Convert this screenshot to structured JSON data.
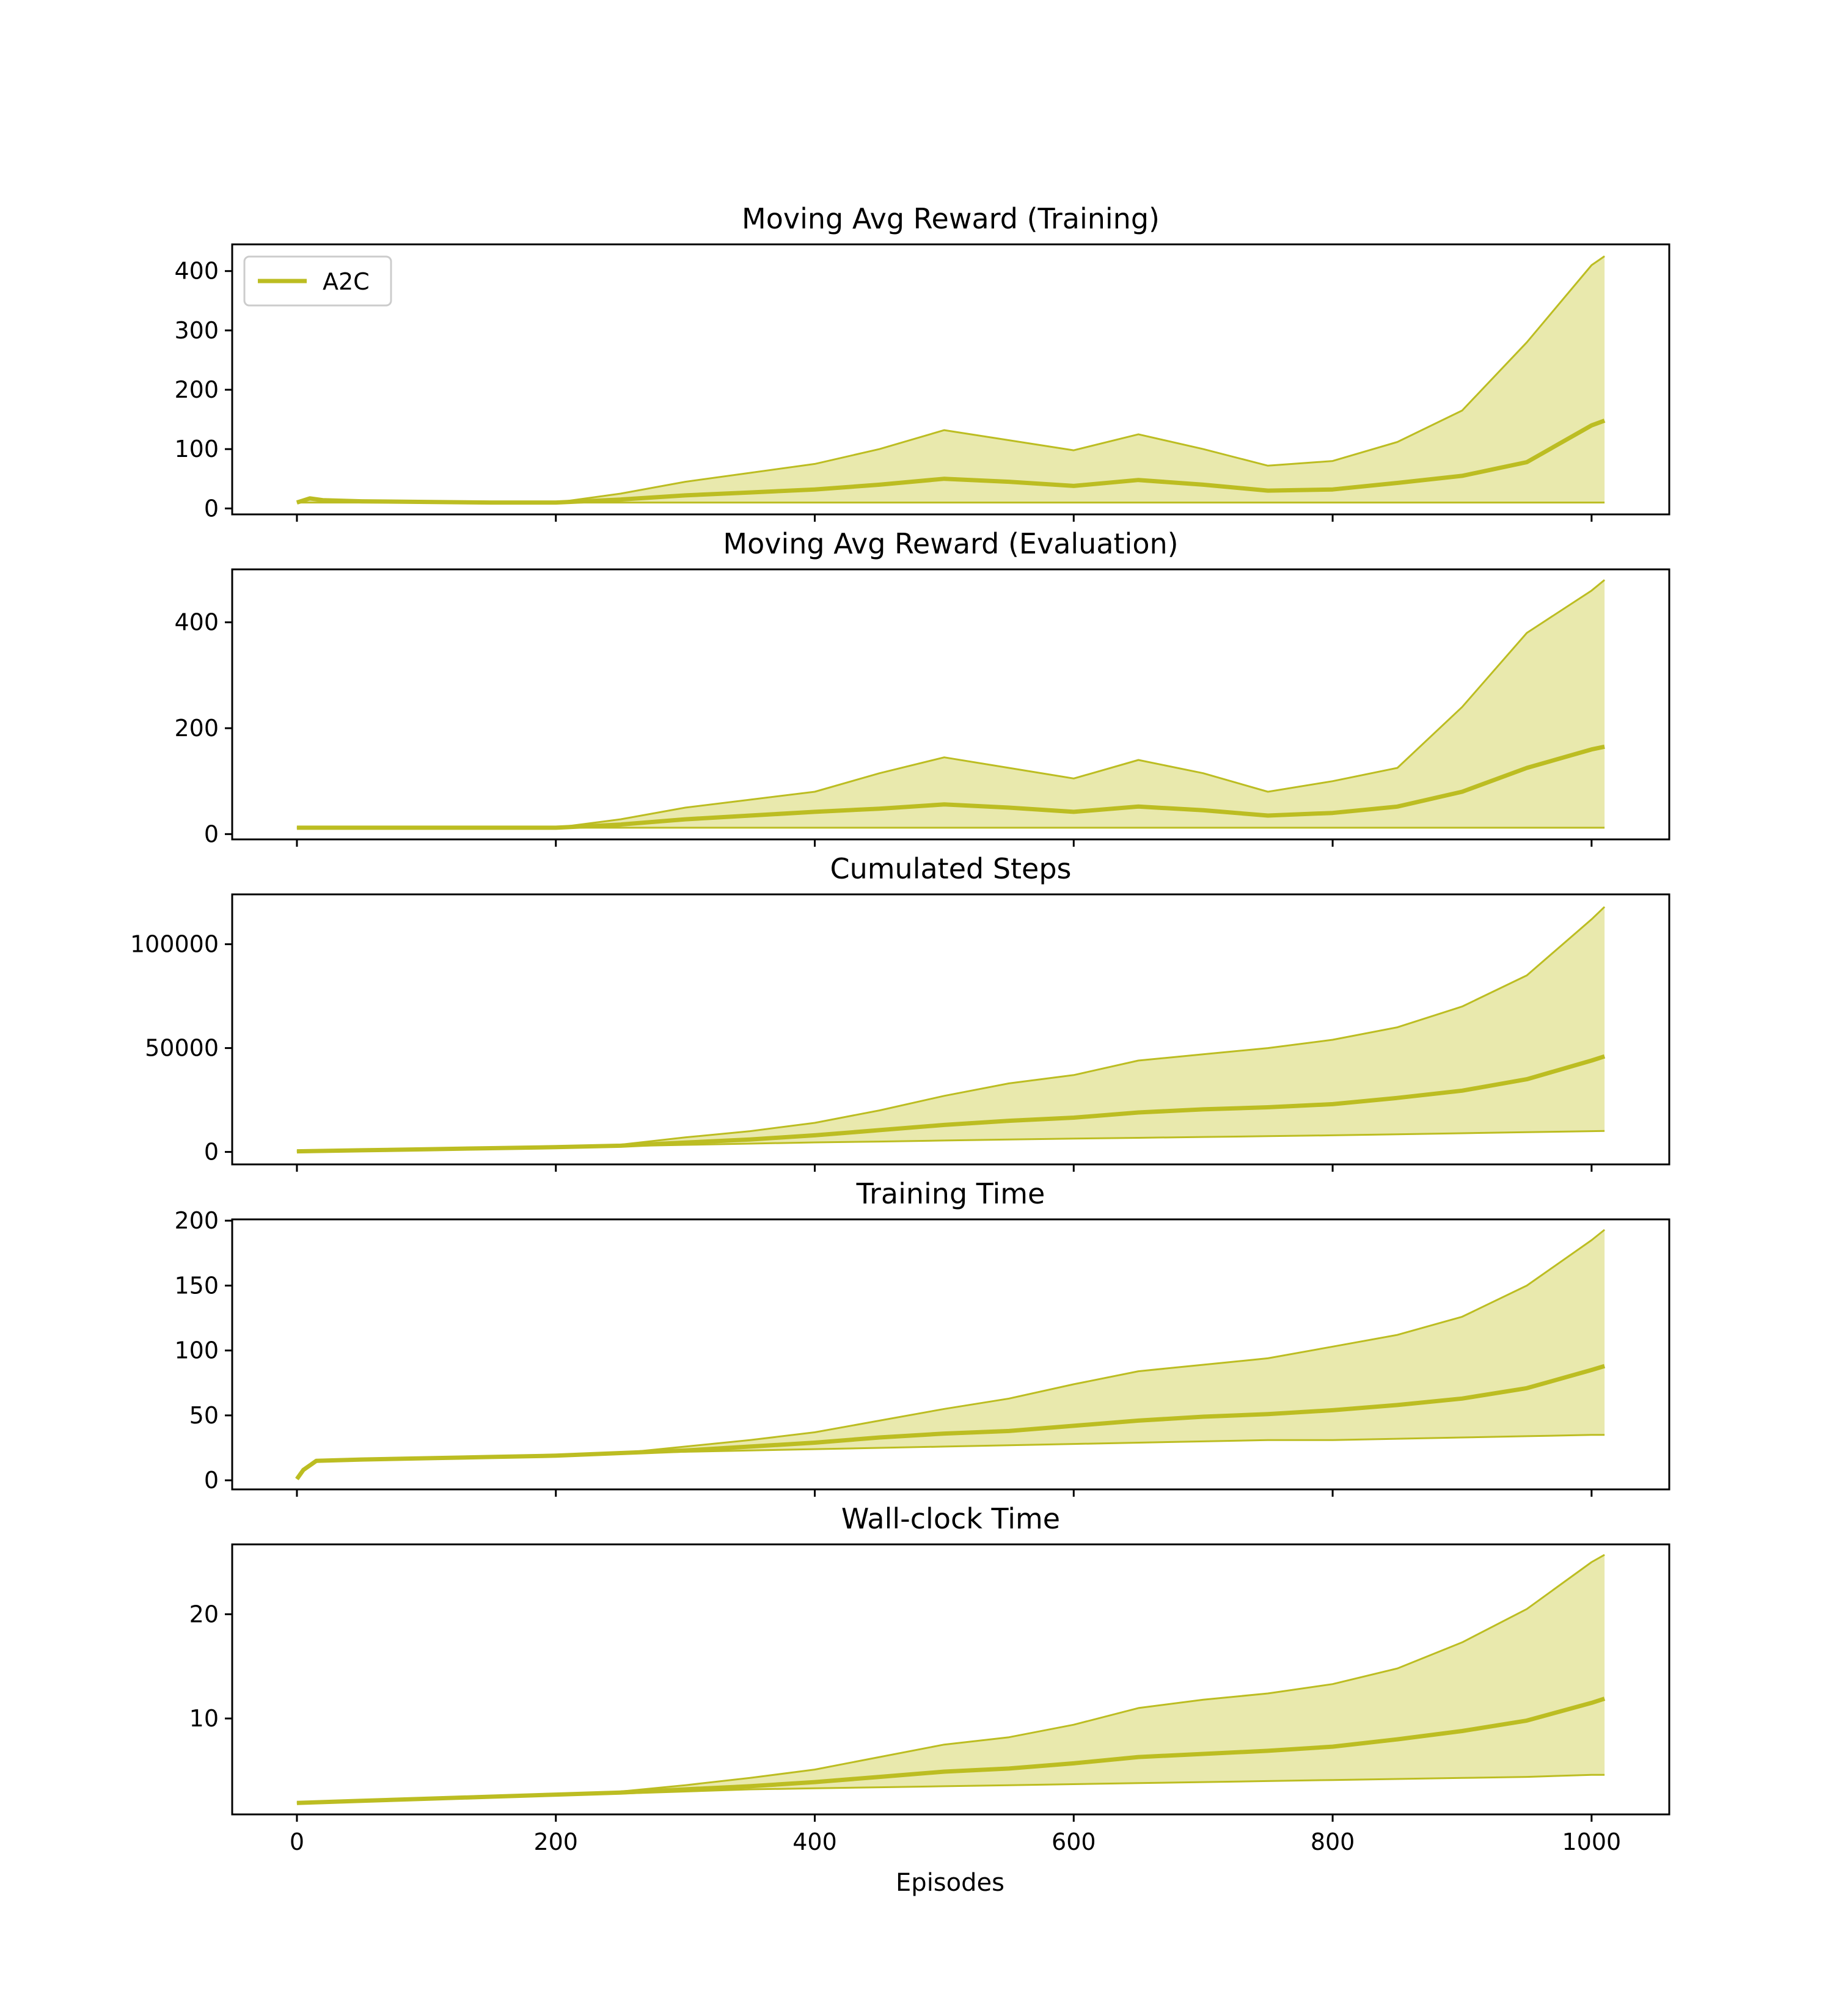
{
  "figure": {
    "xlabel": "Episodes"
  },
  "colors": {
    "series": "#bcbd22",
    "band_fill": "#e9e9ad"
  },
  "legend": {
    "label": "A2C",
    "placement": "upper-left"
  },
  "chart_data": [
    {
      "type": "line",
      "title": "Moving Avg Reward (Training)",
      "xlabel": "",
      "ylabel": "",
      "xlim": [
        -50,
        1060
      ],
      "ylim": [
        -10,
        445
      ],
      "xticks": [
        0,
        200,
        400,
        600,
        800,
        1000
      ],
      "yticks": [
        0,
        100,
        200,
        300,
        400
      ],
      "series": [
        {
          "name": "A2C",
          "x": [
            0,
            10,
            20,
            50,
            100,
            150,
            200,
            250,
            300,
            350,
            400,
            450,
            500,
            550,
            600,
            650,
            700,
            750,
            800,
            850,
            900,
            950,
            1000,
            1010
          ],
          "mean": [
            10,
            17,
            14,
            12,
            11,
            10,
            10,
            15,
            22,
            27,
            32,
            40,
            50,
            45,
            38,
            48,
            40,
            30,
            32,
            43,
            55,
            78,
            140,
            148
          ],
          "upper": [
            10,
            17,
            14,
            12,
            11,
            10,
            10,
            25,
            45,
            60,
            75,
            100,
            132,
            115,
            98,
            125,
            100,
            72,
            80,
            112,
            165,
            280,
            410,
            425
          ],
          "lower": [
            10,
            10,
            10,
            10,
            10,
            10,
            10,
            10,
            10,
            10,
            10,
            10,
            10,
            10,
            10,
            10,
            10,
            10,
            10,
            10,
            10,
            10,
            10,
            10
          ]
        }
      ]
    },
    {
      "type": "line",
      "title": "Moving Avg Reward (Evaluation)",
      "xlabel": "",
      "ylabel": "",
      "xlim": [
        -50,
        1060
      ],
      "ylim": [
        -10,
        500
      ],
      "xticks": [
        0,
        200,
        400,
        600,
        800,
        1000
      ],
      "yticks": [
        0,
        200,
        400
      ],
      "series": [
        {
          "name": "A2C",
          "x": [
            0,
            50,
            100,
            150,
            200,
            250,
            300,
            350,
            400,
            450,
            500,
            550,
            600,
            650,
            700,
            750,
            800,
            850,
            900,
            950,
            1000,
            1010
          ],
          "mean": [
            12,
            12,
            12,
            12,
            12,
            18,
            28,
            35,
            42,
            48,
            56,
            50,
            42,
            52,
            45,
            35,
            40,
            52,
            80,
            125,
            160,
            165
          ],
          "upper": [
            12,
            12,
            12,
            12,
            12,
            28,
            50,
            65,
            80,
            115,
            145,
            125,
            105,
            140,
            115,
            80,
            100,
            125,
            240,
            380,
            460,
            480
          ],
          "lower": [
            12,
            12,
            12,
            12,
            12,
            12,
            12,
            12,
            12,
            12,
            12,
            12,
            12,
            12,
            12,
            12,
            12,
            12,
            12,
            12,
            12,
            12
          ]
        }
      ]
    },
    {
      "type": "line",
      "title": "Cumulated Steps",
      "xlabel": "",
      "ylabel": "",
      "xlim": [
        -50,
        1060
      ],
      "ylim": [
        -6000,
        124000
      ],
      "xticks": [
        0,
        200,
        400,
        600,
        800,
        1000
      ],
      "yticks": [
        0,
        50000,
        100000
      ],
      "series": [
        {
          "name": "A2C",
          "x": [
            0,
            50,
            100,
            150,
            200,
            250,
            300,
            350,
            400,
            450,
            500,
            550,
            600,
            650,
            700,
            750,
            800,
            850,
            900,
            950,
            1000,
            1010
          ],
          "mean": [
            300,
            800,
            1300,
            1800,
            2300,
            3000,
            4500,
            6000,
            8000,
            10500,
            13000,
            15000,
            16500,
            19000,
            20500,
            21500,
            23000,
            26000,
            29500,
            35000,
            44000,
            46000
          ],
          "upper": [
            300,
            800,
            1300,
            1800,
            2300,
            3500,
            7000,
            10000,
            14000,
            20000,
            27000,
            33000,
            37000,
            44000,
            47000,
            50000,
            54000,
            60000,
            70000,
            85000,
            112000,
            118000
          ],
          "lower": [
            300,
            800,
            1300,
            1800,
            2300,
            2800,
            3400,
            4000,
            4600,
            5000,
            5500,
            6000,
            6400,
            6800,
            7200,
            7600,
            8000,
            8500,
            9000,
            9500,
            10000,
            10100
          ]
        }
      ]
    },
    {
      "type": "line",
      "title": "Training Time",
      "xlabel": "",
      "ylabel": "",
      "xlim": [
        -50,
        1060
      ],
      "ylim": [
        -7,
        201
      ],
      "xticks": [
        0,
        200,
        400,
        600,
        800,
        1000
      ],
      "yticks": [
        0,
        50,
        100,
        150,
        200
      ],
      "series": [
        {
          "name": "A2C",
          "x": [
            0,
            5,
            15,
            50,
            100,
            150,
            200,
            250,
            300,
            350,
            400,
            450,
            500,
            550,
            600,
            650,
            700,
            750,
            800,
            850,
            900,
            950,
            1000,
            1010
          ],
          "mean": [
            1,
            8,
            15,
            16,
            17,
            18,
            19,
            21,
            23,
            26,
            29,
            33,
            36,
            38,
            42,
            46,
            49,
            51,
            54,
            58,
            63,
            71,
            85,
            88
          ],
          "upper": [
            1,
            8,
            15,
            16,
            17,
            18,
            19,
            21,
            26,
            31,
            37,
            46,
            55,
            63,
            74,
            84,
            89,
            94,
            103,
            112,
            126,
            150,
            185,
            193
          ],
          "lower": [
            1,
            8,
            15,
            16,
            17,
            18,
            19,
            21,
            22,
            23,
            24,
            25,
            26,
            27,
            28,
            29,
            30,
            31,
            31,
            32,
            33,
            34,
            35,
            35
          ]
        }
      ]
    },
    {
      "type": "line",
      "title": "Wall-clock Time",
      "xlabel": "",
      "ylabel": "",
      "xlim": [
        -50,
        1060
      ],
      "ylim": [
        0.8,
        26.7
      ],
      "xticks": [
        0,
        200,
        400,
        600,
        800,
        1000
      ],
      "yticks": [
        10,
        20
      ],
      "series": [
        {
          "name": "A2C",
          "x": [
            0,
            50,
            100,
            150,
            200,
            250,
            300,
            350,
            400,
            450,
            500,
            550,
            600,
            650,
            700,
            750,
            800,
            850,
            900,
            950,
            1000,
            1010
          ],
          "mean": [
            1.9,
            2.1,
            2.3,
            2.5,
            2.7,
            2.9,
            3.2,
            3.5,
            3.9,
            4.4,
            4.9,
            5.2,
            5.7,
            6.3,
            6.6,
            6.9,
            7.3,
            8.0,
            8.8,
            9.8,
            11.5,
            11.9
          ],
          "upper": [
            1.9,
            2.1,
            2.3,
            2.5,
            2.7,
            3.0,
            3.6,
            4.3,
            5.1,
            6.3,
            7.5,
            8.2,
            9.4,
            11.0,
            11.8,
            12.4,
            13.3,
            14.8,
            17.3,
            20.5,
            25.0,
            25.7
          ],
          "lower": [
            1.9,
            2.1,
            2.3,
            2.5,
            2.7,
            2.8,
            3.0,
            3.2,
            3.3,
            3.4,
            3.5,
            3.6,
            3.7,
            3.8,
            3.9,
            4.0,
            4.1,
            4.2,
            4.3,
            4.4,
            4.6,
            4.6
          ]
        }
      ]
    }
  ]
}
